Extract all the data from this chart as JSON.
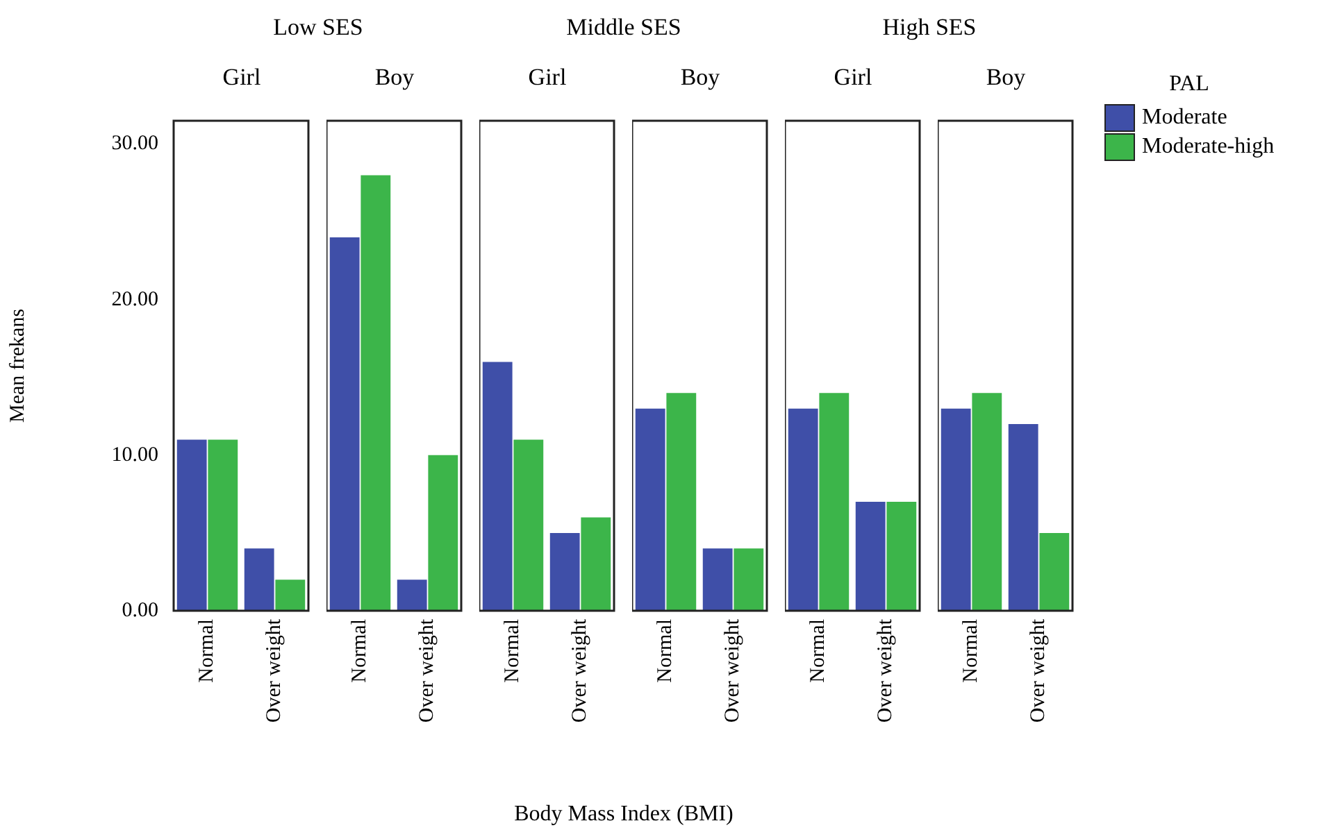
{
  "chart_data": [
    {
      "type": "bar",
      "title": "Low SES",
      "subtitle": "Girl",
      "ylabel": "Mean frekans",
      "categories": [
        "Normal",
        "Over weight"
      ],
      "series": [
        {
          "color": "#3f4fa8",
          "values": [
            11,
            4
          ]
        },
        {
          "color": "#3cb54a",
          "values": [
            11,
            2
          ]
        }
      ],
      "ylim": [
        0,
        31.5
      ],
      "yticks": [
        {
          "value": 0,
          "label": "0.00"
        },
        {
          "value": 10,
          "label": "10.00"
        },
        {
          "value": 20,
          "label": "20.00"
        },
        {
          "value": 30,
          "label": "30.00"
        }
      ]
    },
    {
      "type": "bar",
      "subtitle": "Boy",
      "categories": [
        "Normal",
        "Over weight"
      ],
      "series": [
        {
          "color": "#3f4fa8",
          "values": [
            24,
            2
          ]
        },
        {
          "color": "#3cb54a",
          "values": [
            28,
            10
          ]
        }
      ],
      "ylim": [
        0,
        31.5
      ],
      "tick_labels": "x"
    },
    {
      "type": "bar",
      "title": "Middle SES",
      "subtitle": "Girl",
      "xlabel": "Body Mass Index (BMI)",
      "categories": [
        "Normal",
        "Over weight"
      ],
      "series": [
        {
          "color": "#3f4fa8",
          "values": [
            16,
            5
          ]
        },
        {
          "color": "#3cb54a",
          "values": [
            11,
            6
          ]
        }
      ],
      "ylim": [
        0,
        31.5
      ],
      "tick_labels": "x"
    },
    {
      "type": "bar",
      "subtitle": "Boy",
      "categories": [
        "Normal",
        "Over weight"
      ],
      "series": [
        {
          "color": "#3f4fa8",
          "values": [
            13,
            4
          ]
        },
        {
          "color": "#3cb54a",
          "values": [
            14,
            4
          ]
        }
      ],
      "ylim": [
        0,
        31.5
      ],
      "tick_labels": "x"
    },
    {
      "type": "bar",
      "title": "High SES",
      "subtitle": "Girl",
      "categories": [
        "Normal",
        "Over weight"
      ],
      "series": [
        {
          "color": "#3f4fa8",
          "values": [
            13,
            7
          ]
        },
        {
          "color": "#3cb54a",
          "values": [
            14,
            7
          ]
        }
      ],
      "ylim": [
        0,
        31.5
      ],
      "tick_labels": "x"
    },
    {
      "type": "bar",
      "subtitle": "Boy",
      "legend": "right",
      "legend_title": "PAL",
      "categories": [
        "Normal",
        "Over weight"
      ],
      "series": [
        {
          "name": "Moderate",
          "color": "#3f4fa8",
          "values": [
            13,
            12
          ]
        },
        {
          "name": "Moderate-high",
          "color": "#3cb54a",
          "values": [
            14,
            5
          ]
        }
      ],
      "ylim": [
        0,
        31.5
      ],
      "tick_labels": "x"
    }
  ]
}
